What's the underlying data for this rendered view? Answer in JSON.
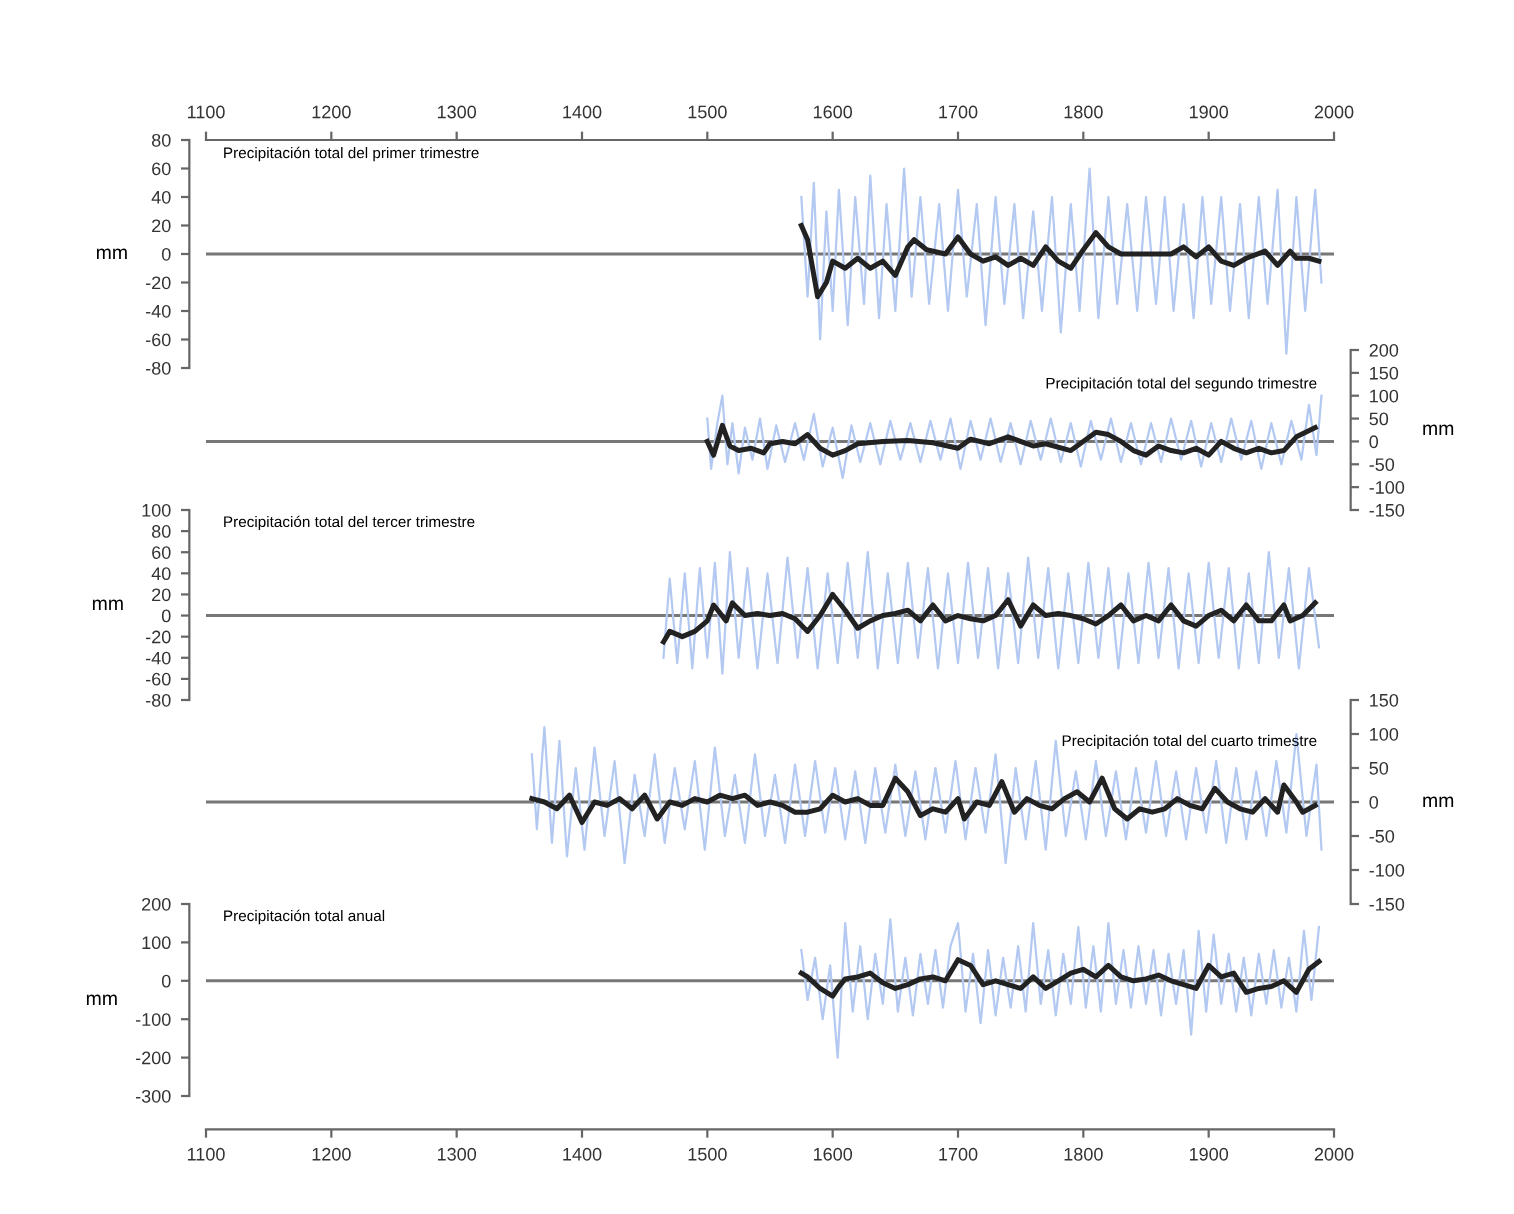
{
  "chart_data": [
    {
      "type": "line",
      "title": "Precipitación total del primer trimestre",
      "ylabel": "mm",
      "xlim": [
        1100,
        2000
      ],
      "xticks": [
        1100,
        1200,
        1300,
        1400,
        1500,
        1600,
        1700,
        1800,
        1900,
        2000
      ],
      "ylim": [
        -80,
        80
      ],
      "yticks": [
        -80,
        -60,
        -40,
        -20,
        0,
        20,
        40,
        60,
        80
      ],
      "ref_lines": [
        {
          "axis": "y",
          "value": 0,
          "color": "#777777"
        }
      ],
      "series": [
        {
          "color": "#b3c9f2",
          "x": [
            1575,
            1580,
            1585,
            1590,
            1595,
            1600,
            1605,
            1612,
            1618,
            1625,
            1630,
            1637,
            1643,
            1650,
            1657,
            1663,
            1670,
            1677,
            1685,
            1692,
            1700,
            1707,
            1715,
            1722,
            1730,
            1737,
            1745,
            1752,
            1760,
            1767,
            1775,
            1782,
            1790,
            1797,
            1805,
            1812,
            1820,
            1827,
            1835,
            1843,
            1850,
            1858,
            1865,
            1872,
            1880,
            1888,
            1895,
            1902,
            1910,
            1917,
            1925,
            1932,
            1940,
            1947,
            1955,
            1962,
            1970,
            1977,
            1985,
            1990
          ],
          "values": [
            40,
            -30,
            50,
            -60,
            30,
            -40,
            45,
            -50,
            40,
            -35,
            55,
            -45,
            35,
            -40,
            60,
            -30,
            40,
            -35,
            35,
            -40,
            45,
            -30,
            35,
            -50,
            40,
            -35,
            35,
            -45,
            30,
            -40,
            40,
            -55,
            35,
            -40,
            60,
            -45,
            40,
            -35,
            35,
            -40,
            40,
            -35,
            40,
            -40,
            35,
            -45,
            40,
            -35,
            40,
            -40,
            35,
            -45,
            40,
            -35,
            45,
            -70,
            40,
            -40,
            45,
            -20
          ]
        },
        {
          "color": "#222222",
          "x": [
            1575,
            1580,
            1588,
            1595,
            1600,
            1610,
            1620,
            1630,
            1640,
            1650,
            1660,
            1665,
            1675,
            1690,
            1700,
            1710,
            1720,
            1730,
            1740,
            1750,
            1760,
            1770,
            1780,
            1790,
            1800,
            1810,
            1820,
            1830,
            1850,
            1870,
            1880,
            1890,
            1900,
            1910,
            1920,
            1930,
            1945,
            1955,
            1965,
            1970,
            1980,
            1988
          ],
          "values": [
            20,
            10,
            -30,
            -20,
            -5,
            -10,
            -3,
            -10,
            -5,
            -15,
            5,
            10,
            3,
            0,
            12,
            0,
            -5,
            -2,
            -8,
            -3,
            -8,
            5,
            -5,
            -10,
            3,
            15,
            5,
            0,
            0,
            0,
            5,
            -2,
            5,
            -5,
            -8,
            -3,
            2,
            -8,
            2,
            -3,
            -3,
            -5
          ]
        }
      ]
    },
    {
      "type": "line",
      "title": "Precipitación total del segundo trimestre",
      "y2label": "mm",
      "xlim": [
        1100,
        2000
      ],
      "y2lim": [
        -150,
        200
      ],
      "y2ticks": [
        -150,
        -100,
        -50,
        0,
        50,
        100,
        150,
        200
      ],
      "tick_labels": "y",
      "ref_lines": [
        {
          "axis": "y2",
          "value": 0,
          "color": "#777777"
        }
      ],
      "series": [
        {
          "axis": "y2",
          "color": "#b3c9f2",
          "x": [
            1500,
            1503,
            1508,
            1512,
            1516,
            1520,
            1525,
            1530,
            1536,
            1542,
            1548,
            1555,
            1562,
            1570,
            1577,
            1585,
            1592,
            1600,
            1608,
            1615,
            1622,
            1630,
            1638,
            1646,
            1654,
            1662,
            1670,
            1678,
            1686,
            1694,
            1702,
            1710,
            1718,
            1726,
            1734,
            1742,
            1750,
            1758,
            1766,
            1774,
            1782,
            1790,
            1798,
            1806,
            1814,
            1822,
            1830,
            1838,
            1846,
            1854,
            1862,
            1870,
            1878,
            1886,
            1894,
            1902,
            1910,
            1918,
            1926,
            1934,
            1942,
            1950,
            1958,
            1966,
            1974,
            1980,
            1986,
            1990
          ],
          "values": [
            50,
            -60,
            40,
            100,
            -50,
            40,
            -70,
            30,
            -40,
            50,
            -60,
            35,
            -45,
            40,
            -40,
            60,
            -55,
            30,
            -80,
            35,
            -45,
            40,
            -50,
            45,
            -40,
            40,
            -45,
            45,
            -40,
            50,
            -60,
            45,
            -40,
            50,
            -45,
            40,
            -50,
            45,
            -40,
            50,
            -45,
            40,
            -55,
            45,
            -40,
            50,
            -45,
            40,
            -50,
            40,
            -45,
            50,
            -40,
            45,
            -55,
            40,
            -45,
            50,
            -40,
            45,
            -60,
            40,
            -50,
            45,
            -40,
            80,
            -30,
            100
          ]
        },
        {
          "axis": "y2",
          "color": "#222222",
          "x": [
            1500,
            1505,
            1512,
            1518,
            1525,
            1535,
            1545,
            1550,
            1560,
            1570,
            1580,
            1590,
            1600,
            1610,
            1620,
            1640,
            1660,
            1680,
            1700,
            1710,
            1725,
            1740,
            1760,
            1770,
            1790,
            1810,
            1820,
            1830,
            1840,
            1850,
            1860,
            1870,
            1880,
            1890,
            1900,
            1910,
            1920,
            1930,
            1940,
            1950,
            1960,
            1970,
            1985
          ],
          "values": [
            0,
            -30,
            35,
            -10,
            -20,
            -15,
            -25,
            -5,
            0,
            -5,
            15,
            -15,
            -30,
            -20,
            -5,
            0,
            2,
            -3,
            -15,
            5,
            -5,
            10,
            -10,
            -5,
            -20,
            20,
            15,
            0,
            -20,
            -30,
            -10,
            -20,
            -25,
            -15,
            -30,
            0,
            -15,
            -25,
            -15,
            -25,
            -20,
            10,
            30
          ]
        }
      ]
    },
    {
      "type": "line",
      "title": "Precipitación total del tercer trimestre",
      "ylabel": "mm",
      "xlim": [
        1100,
        2000
      ],
      "ylim": [
        -80,
        100
      ],
      "yticks": [
        -80,
        -60,
        -40,
        -20,
        0,
        20,
        40,
        60,
        80,
        100
      ],
      "tick_labels": "y",
      "ref_lines": [
        {
          "axis": "y",
          "value": 0,
          "color": "#777777"
        }
      ],
      "series": [
        {
          "color": "#b3c9f2",
          "x": [
            1465,
            1470,
            1476,
            1482,
            1488,
            1494,
            1500,
            1506,
            1512,
            1518,
            1525,
            1532,
            1540,
            1548,
            1556,
            1564,
            1572,
            1580,
            1588,
            1596,
            1604,
            1612,
            1620,
            1628,
            1636,
            1644,
            1652,
            1660,
            1668,
            1676,
            1684,
            1692,
            1700,
            1708,
            1716,
            1724,
            1732,
            1740,
            1748,
            1756,
            1764,
            1772,
            1780,
            1788,
            1796,
            1804,
            1812,
            1820,
            1828,
            1836,
            1844,
            1852,
            1860,
            1868,
            1876,
            1884,
            1892,
            1900,
            1908,
            1916,
            1924,
            1932,
            1940,
            1948,
            1956,
            1964,
            1972,
            1980,
            1988
          ],
          "values": [
            -40,
            35,
            -45,
            40,
            -50,
            45,
            -40,
            50,
            -55,
            60,
            -40,
            45,
            -50,
            40,
            -45,
            55,
            -40,
            45,
            -50,
            40,
            -45,
            50,
            -40,
            60,
            -50,
            40,
            -45,
            50,
            -40,
            45,
            -50,
            40,
            -45,
            50,
            -40,
            45,
            -50,
            40,
            -45,
            55,
            -40,
            45,
            -50,
            40,
            -45,
            50,
            -40,
            45,
            -50,
            40,
            -45,
            50,
            -40,
            45,
            -50,
            40,
            -45,
            50,
            -40,
            45,
            -50,
            40,
            -45,
            60,
            -40,
            45,
            -50,
            45,
            -30
          ]
        },
        {
          "color": "#222222",
          "x": [
            1465,
            1470,
            1480,
            1490,
            1500,
            1505,
            1515,
            1520,
            1530,
            1540,
            1550,
            1560,
            1570,
            1580,
            1590,
            1600,
            1610,
            1620,
            1630,
            1640,
            1650,
            1660,
            1670,
            1680,
            1690,
            1700,
            1710,
            1720,
            1730,
            1740,
            1750,
            1760,
            1770,
            1780,
            1790,
            1800,
            1810,
            1820,
            1830,
            1840,
            1850,
            1860,
            1870,
            1880,
            1890,
            1900,
            1910,
            1920,
            1930,
            1940,
            1950,
            1960,
            1965,
            1975,
            1985
          ],
          "values": [
            -25,
            -15,
            -20,
            -15,
            -5,
            10,
            -5,
            12,
            0,
            2,
            0,
            2,
            -3,
            -15,
            0,
            20,
            5,
            -12,
            -5,
            0,
            2,
            5,
            -5,
            10,
            -5,
            0,
            -3,
            -5,
            0,
            15,
            -10,
            10,
            0,
            2,
            0,
            -3,
            -8,
            0,
            10,
            -5,
            0,
            -5,
            10,
            -5,
            -10,
            0,
            5,
            -5,
            10,
            -5,
            -5,
            10,
            -5,
            0,
            12
          ]
        }
      ]
    },
    {
      "type": "line",
      "title": "Precipitación total del cuarto trimestre",
      "y2label": "mm",
      "xlim": [
        1100,
        2000
      ],
      "y2lim": [
        -150,
        150
      ],
      "y2ticks": [
        -150,
        -100,
        -50,
        0,
        50,
        100,
        150
      ],
      "tick_labels": "y",
      "ref_lines": [
        {
          "axis": "y2",
          "value": 0,
          "color": "#777777"
        }
      ],
      "series": [
        {
          "axis": "y2",
          "color": "#b3c9f2",
          "x": [
            1360,
            1364,
            1370,
            1376,
            1382,
            1388,
            1395,
            1402,
            1410,
            1418,
            1426,
            1434,
            1442,
            1450,
            1458,
            1466,
            1474,
            1482,
            1490,
            1498,
            1506,
            1514,
            1522,
            1530,
            1538,
            1546,
            1554,
            1562,
            1570,
            1578,
            1586,
            1594,
            1602,
            1610,
            1618,
            1626,
            1634,
            1642,
            1650,
            1658,
            1666,
            1674,
            1682,
            1690,
            1698,
            1706,
            1714,
            1722,
            1730,
            1738,
            1746,
            1754,
            1762,
            1770,
            1778,
            1786,
            1794,
            1802,
            1810,
            1818,
            1826,
            1834,
            1842,
            1850,
            1858,
            1866,
            1874,
            1882,
            1890,
            1898,
            1906,
            1914,
            1922,
            1930,
            1938,
            1946,
            1954,
            1962,
            1970,
            1978,
            1986,
            1990
          ],
          "values": [
            70,
            -40,
            110,
            -60,
            90,
            -80,
            50,
            -70,
            80,
            -50,
            60,
            -90,
            40,
            -50,
            70,
            -60,
            50,
            -40,
            60,
            -70,
            80,
            -50,
            40,
            -60,
            70,
            -50,
            40,
            -60,
            55,
            -50,
            60,
            -45,
            50,
            -55,
            45,
            -60,
            50,
            -45,
            55,
            -50,
            45,
            -55,
            50,
            -45,
            60,
            -55,
            50,
            -45,
            70,
            -90,
            50,
            -55,
            60,
            -70,
            90,
            -50,
            45,
            -55,
            60,
            -50,
            45,
            -55,
            50,
            -45,
            60,
            -50,
            45,
            -55,
            50,
            -45,
            60,
            -60,
            50,
            -55,
            45,
            -50,
            60,
            -45,
            100,
            -50,
            55,
            -70
          ]
        },
        {
          "axis": "y2",
          "color": "#222222",
          "x": [
            1360,
            1370,
            1380,
            1390,
            1400,
            1410,
            1420,
            1430,
            1440,
            1450,
            1460,
            1470,
            1480,
            1490,
            1500,
            1510,
            1520,
            1530,
            1540,
            1550,
            1560,
            1570,
            1580,
            1590,
            1600,
            1610,
            1620,
            1630,
            1640,
            1650,
            1660,
            1670,
            1680,
            1690,
            1700,
            1705,
            1715,
            1725,
            1735,
            1745,
            1755,
            1765,
            1775,
            1785,
            1795,
            1805,
            1815,
            1825,
            1835,
            1845,
            1855,
            1865,
            1875,
            1885,
            1895,
            1905,
            1915,
            1925,
            1935,
            1945,
            1955,
            1960,
            1970,
            1975,
            1985
          ],
          "values": [
            5,
            0,
            -10,
            10,
            -30,
            0,
            -5,
            5,
            -10,
            10,
            -25,
            0,
            -5,
            5,
            0,
            10,
            5,
            10,
            -5,
            0,
            -5,
            -15,
            -15,
            -10,
            10,
            0,
            5,
            -5,
            -5,
            35,
            15,
            -20,
            -10,
            -15,
            5,
            -25,
            0,
            -5,
            30,
            -15,
            5,
            -5,
            -10,
            5,
            15,
            0,
            35,
            -10,
            -25,
            -10,
            -15,
            -10,
            5,
            -5,
            -10,
            20,
            0,
            -10,
            -15,
            5,
            -15,
            25,
            0,
            -15,
            -5
          ]
        }
      ]
    },
    {
      "type": "line",
      "title": "Precipitación total anual",
      "ylabel": "mm",
      "xlim": [
        1100,
        2000
      ],
      "xticks": [
        1100,
        1200,
        1300,
        1400,
        1500,
        1600,
        1700,
        1800,
        1900,
        2000
      ],
      "ylim": [
        -300,
        200
      ],
      "yticks": [
        -300,
        -200,
        -100,
        0,
        100,
        200
      ],
      "ref_lines": [
        {
          "axis": "y",
          "value": 0,
          "color": "#777777"
        }
      ],
      "series": [
        {
          "color": "#b3c9f2",
          "x": [
            1575,
            1580,
            1586,
            1592,
            1598,
            1604,
            1610,
            1616,
            1622,
            1628,
            1634,
            1640,
            1646,
            1652,
            1658,
            1664,
            1670,
            1676,
            1682,
            1688,
            1694,
            1700,
            1706,
            1712,
            1718,
            1724,
            1730,
            1736,
            1742,
            1748,
            1754,
            1760,
            1766,
            1772,
            1778,
            1784,
            1790,
            1796,
            1802,
            1808,
            1814,
            1820,
            1826,
            1832,
            1838,
            1844,
            1850,
            1856,
            1862,
            1868,
            1874,
            1880,
            1886,
            1892,
            1898,
            1904,
            1910,
            1916,
            1922,
            1928,
            1934,
            1940,
            1946,
            1952,
            1958,
            1964,
            1970,
            1976,
            1982,
            1988
          ],
          "values": [
            80,
            -50,
            60,
            -100,
            40,
            -200,
            150,
            -80,
            90,
            -100,
            70,
            -60,
            160,
            -80,
            60,
            -90,
            70,
            -60,
            80,
            -70,
            90,
            150,
            -80,
            70,
            -110,
            80,
            -90,
            60,
            -70,
            90,
            -80,
            150,
            -60,
            80,
            -90,
            70,
            -60,
            140,
            -70,
            90,
            -80,
            150,
            -60,
            80,
            -70,
            90,
            -60,
            80,
            -90,
            70,
            -60,
            80,
            -140,
            130,
            -80,
            120,
            -60,
            70,
            -80,
            60,
            -90,
            70,
            -60,
            80,
            -70,
            60,
            -80,
            130,
            -50,
            140
          ]
        },
        {
          "color": "#222222",
          "x": [
            1575,
            1580,
            1590,
            1600,
            1605,
            1610,
            1620,
            1630,
            1640,
            1650,
            1660,
            1670,
            1680,
            1690,
            1700,
            1710,
            1720,
            1730,
            1740,
            1750,
            1760,
            1770,
            1780,
            1790,
            1800,
            1810,
            1820,
            1830,
            1840,
            1850,
            1860,
            1870,
            1880,
            1890,
            1900,
            1910,
            1920,
            1930,
            1940,
            1950,
            1960,
            1970,
            1980,
            1988
          ],
          "values": [
            20,
            10,
            -20,
            -40,
            -15,
            5,
            10,
            20,
            -5,
            -20,
            -10,
            5,
            10,
            0,
            55,
            40,
            -10,
            0,
            -10,
            -20,
            10,
            -20,
            0,
            20,
            30,
            10,
            40,
            10,
            0,
            5,
            15,
            0,
            -10,
            -20,
            40,
            10,
            20,
            -30,
            -20,
            -15,
            0,
            -30,
            30,
            50
          ]
        }
      ]
    }
  ]
}
